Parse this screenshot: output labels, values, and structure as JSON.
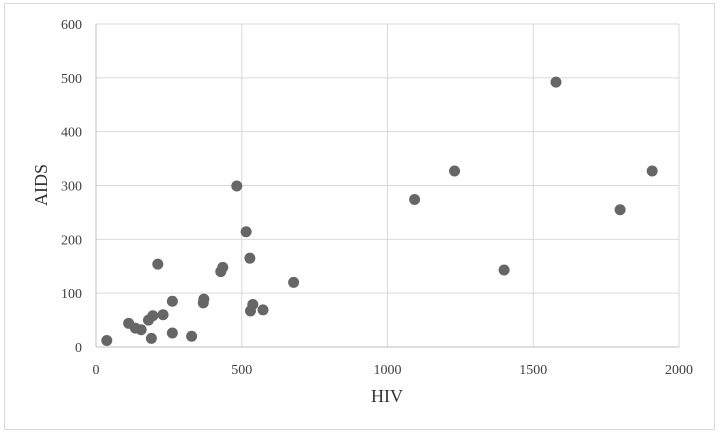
{
  "chart_data": {
    "type": "scatter",
    "title": "",
    "xlabel": "HIV",
    "ylabel": "AIDS",
    "xlim": [
      0,
      2000
    ],
    "ylim": [
      0,
      600
    ],
    "x_ticks": [
      0,
      500,
      1000,
      1500,
      2000
    ],
    "y_ticks": [
      0,
      100,
      200,
      300,
      400,
      500,
      600
    ],
    "grid": true,
    "legend": "none",
    "marker_color": "#666666",
    "series": [
      {
        "points": [
          {
            "x": 37,
            "y": 12
          },
          {
            "x": 112,
            "y": 44
          },
          {
            "x": 135,
            "y": 35
          },
          {
            "x": 155,
            "y": 32
          },
          {
            "x": 180,
            "y": 50
          },
          {
            "x": 190,
            "y": 16
          },
          {
            "x": 195,
            "y": 58
          },
          {
            "x": 212,
            "y": 154
          },
          {
            "x": 230,
            "y": 60
          },
          {
            "x": 262,
            "y": 85
          },
          {
            "x": 262,
            "y": 26
          },
          {
            "x": 328,
            "y": 20
          },
          {
            "x": 368,
            "y": 82
          },
          {
            "x": 370,
            "y": 89
          },
          {
            "x": 428,
            "y": 140
          },
          {
            "x": 435,
            "y": 148
          },
          {
            "x": 483,
            "y": 299
          },
          {
            "x": 515,
            "y": 214
          },
          {
            "x": 528,
            "y": 165
          },
          {
            "x": 530,
            "y": 67
          },
          {
            "x": 538,
            "y": 79
          },
          {
            "x": 573,
            "y": 69
          },
          {
            "x": 678,
            "y": 120
          },
          {
            "x": 1093,
            "y": 274
          },
          {
            "x": 1230,
            "y": 327
          },
          {
            "x": 1400,
            "y": 143
          },
          {
            "x": 1578,
            "y": 492
          },
          {
            "x": 1798,
            "y": 255
          },
          {
            "x": 1908,
            "y": 327
          }
        ]
      }
    ]
  }
}
